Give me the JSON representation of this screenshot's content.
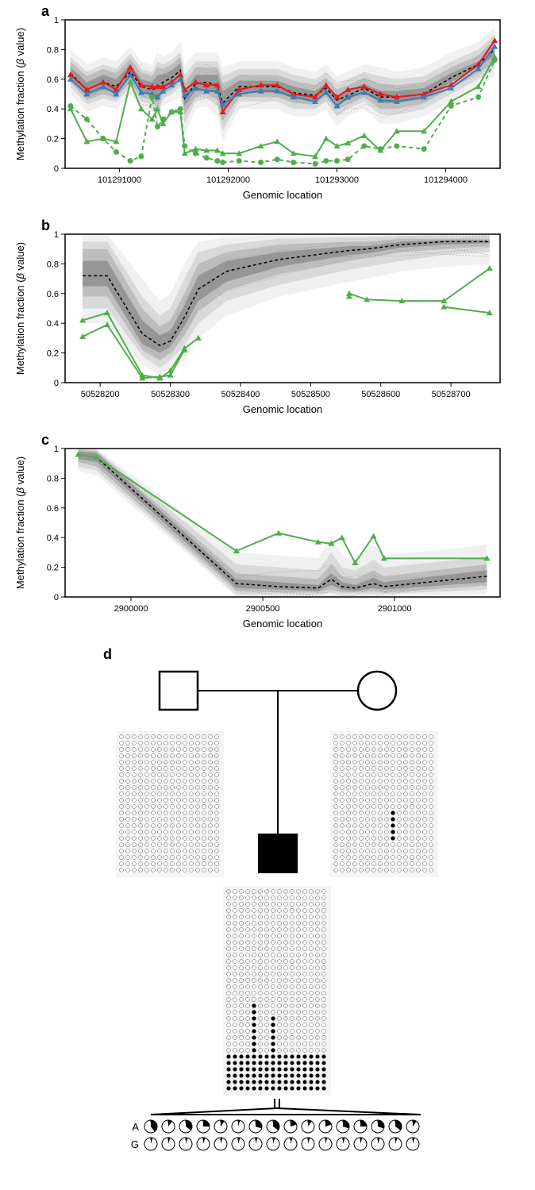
{
  "figure_width": 674,
  "figure_height": 1499,
  "panels": {
    "a": {
      "label": "a",
      "type": "line",
      "ylabel": "Methylation fraction (β value)",
      "xlabel": "Genomic location",
      "ylim": [
        0,
        1
      ],
      "yticks": [
        0,
        0.2,
        0.4,
        0.6,
        0.8,
        1
      ],
      "xlim": [
        101290500,
        101294500
      ],
      "xticks": [
        101291000,
        101292000,
        101293000,
        101294000
      ],
      "background_color": "#ffffff",
      "shade_colors": [
        "#f0f0f0",
        "#d9d9d9",
        "#bdbdbd",
        "#969696"
      ],
      "shade_bands": [
        {
          "low": [
            0.5,
            0.38,
            0.42,
            0.4,
            0.5,
            0.4,
            0.38,
            0.28,
            0.42,
            0.45,
            0.48,
            0.22,
            0.4,
            0.42,
            0.35,
            0.18,
            0.4,
            0.4,
            0.4,
            0.35,
            0.35,
            0.4,
            0.28,
            0.35,
            0.4,
            0.3,
            0.3,
            0.35,
            0.45,
            0.55,
            0.62
          ],
          "high": [
            0.8,
            0.7,
            0.75,
            0.72,
            0.82,
            0.72,
            0.7,
            0.78,
            0.75,
            0.78,
            0.85,
            0.7,
            0.78,
            0.78,
            0.78,
            0.68,
            0.72,
            0.72,
            0.72,
            0.68,
            0.65,
            0.7,
            0.62,
            0.65,
            0.7,
            0.68,
            0.65,
            0.68,
            0.78,
            0.85,
            0.95
          ]
        },
        {
          "low": [
            0.55,
            0.43,
            0.47,
            0.45,
            0.55,
            0.45,
            0.43,
            0.35,
            0.47,
            0.5,
            0.55,
            0.3,
            0.45,
            0.47,
            0.42,
            0.25,
            0.45,
            0.45,
            0.45,
            0.4,
            0.4,
            0.45,
            0.35,
            0.4,
            0.45,
            0.36,
            0.36,
            0.4,
            0.5,
            0.6,
            0.68
          ],
          "high": [
            0.75,
            0.65,
            0.7,
            0.67,
            0.77,
            0.67,
            0.65,
            0.72,
            0.7,
            0.73,
            0.78,
            0.63,
            0.72,
            0.72,
            0.72,
            0.62,
            0.67,
            0.67,
            0.67,
            0.63,
            0.6,
            0.65,
            0.57,
            0.6,
            0.65,
            0.62,
            0.6,
            0.62,
            0.72,
            0.8,
            0.9
          ]
        },
        {
          "low": [
            0.58,
            0.46,
            0.5,
            0.48,
            0.58,
            0.48,
            0.46,
            0.4,
            0.5,
            0.53,
            0.58,
            0.36,
            0.48,
            0.5,
            0.46,
            0.32,
            0.48,
            0.48,
            0.48,
            0.44,
            0.43,
            0.48,
            0.4,
            0.43,
            0.48,
            0.4,
            0.4,
            0.44,
            0.54,
            0.64,
            0.72
          ],
          "high": [
            0.72,
            0.62,
            0.67,
            0.64,
            0.74,
            0.64,
            0.62,
            0.68,
            0.67,
            0.7,
            0.75,
            0.58,
            0.68,
            0.68,
            0.68,
            0.57,
            0.63,
            0.63,
            0.63,
            0.59,
            0.56,
            0.61,
            0.53,
            0.56,
            0.61,
            0.57,
            0.56,
            0.58,
            0.68,
            0.76,
            0.87
          ]
        },
        {
          "low": [
            0.6,
            0.49,
            0.53,
            0.51,
            0.61,
            0.51,
            0.49,
            0.45,
            0.53,
            0.56,
            0.62,
            0.42,
            0.52,
            0.53,
            0.5,
            0.38,
            0.51,
            0.51,
            0.51,
            0.47,
            0.46,
            0.51,
            0.44,
            0.46,
            0.51,
            0.44,
            0.44,
            0.47,
            0.58,
            0.68,
            0.76
          ],
          "high": [
            0.68,
            0.58,
            0.63,
            0.6,
            0.7,
            0.6,
            0.58,
            0.63,
            0.63,
            0.66,
            0.71,
            0.52,
            0.63,
            0.63,
            0.63,
            0.52,
            0.59,
            0.59,
            0.59,
            0.55,
            0.52,
            0.57,
            0.49,
            0.52,
            0.57,
            0.52,
            0.52,
            0.54,
            0.64,
            0.72,
            0.83
          ]
        }
      ],
      "x_positions": [
        101290550,
        101290700,
        101290850,
        101290970,
        101291100,
        101291200,
        101291300,
        101291350,
        101291400,
        101291480,
        101291560,
        101291600,
        101291700,
        101291800,
        101291900,
        101291950,
        101292100,
        101292300,
        101292450,
        101292600,
        101292800,
        101292900,
        101293000,
        101293100,
        101293250,
        101293400,
        101293550,
        101293800,
        101294050,
        101294300,
        101294450
      ],
      "median": [
        0.64,
        0.53,
        0.58,
        0.55,
        0.65,
        0.55,
        0.53,
        0.54,
        0.58,
        0.61,
        0.66,
        0.47,
        0.57,
        0.58,
        0.56,
        0.44,
        0.55,
        0.55,
        0.55,
        0.51,
        0.49,
        0.54,
        0.46,
        0.49,
        0.54,
        0.48,
        0.48,
        0.5,
        0.61,
        0.7,
        0.8
      ],
      "series": [
        {
          "name": "red",
          "color": "#e41a1c",
          "marker": "triangle",
          "dash": false,
          "y": [
            0.63,
            0.53,
            0.58,
            0.53,
            0.68,
            0.56,
            0.55,
            0.55,
            0.55,
            0.58,
            0.63,
            0.53,
            0.58,
            0.56,
            0.56,
            0.38,
            0.53,
            0.56,
            0.56,
            0.5,
            0.48,
            0.56,
            0.48,
            0.53,
            0.55,
            0.5,
            0.48,
            0.5,
            0.56,
            0.7,
            0.86
          ]
        },
        {
          "name": "blue",
          "color": "#377eb8",
          "marker": "triangle",
          "dash": false,
          "y": [
            0.6,
            0.5,
            0.55,
            0.5,
            0.63,
            0.51,
            0.5,
            0.48,
            0.52,
            0.56,
            0.6,
            0.49,
            0.54,
            0.52,
            0.52,
            0.43,
            0.5,
            0.52,
            0.52,
            0.48,
            0.45,
            0.51,
            0.42,
            0.48,
            0.51,
            0.46,
            0.45,
            0.48,
            0.54,
            0.67,
            0.82
          ]
        },
        {
          "name": "green1",
          "color": "#4daf4a",
          "marker": "triangle",
          "dash": false,
          "y": [
            0.4,
            0.18,
            0.2,
            0.18,
            0.58,
            0.4,
            0.33,
            0.4,
            0.3,
            0.38,
            0.38,
            0.1,
            0.13,
            0.12,
            0.12,
            0.1,
            0.1,
            0.15,
            0.18,
            0.1,
            0.08,
            0.2,
            0.15,
            0.17,
            0.22,
            0.12,
            0.25,
            0.25,
            0.45,
            0.55,
            0.75
          ]
        },
        {
          "name": "green2",
          "color": "#4daf4a",
          "marker": "circle",
          "dash": true,
          "y": [
            0.42,
            0.33,
            0.2,
            0.11,
            0.05,
            0.08,
            0.48,
            0.28,
            0.33,
            0.38,
            0.4,
            0.15,
            0.1,
            0.07,
            0.05,
            0.04,
            0.05,
            0.04,
            0.06,
            0.04,
            0.03,
            0.05,
            0.05,
            0.06,
            0.15,
            0.13,
            0.15,
            0.13,
            0.42,
            0.48,
            0.73
          ]
        }
      ]
    },
    "b": {
      "label": "b",
      "type": "line",
      "ylabel": "Methylation fraction (β value)",
      "xlabel": "Genomic location",
      "ylim": [
        0,
        1
      ],
      "yticks": [
        0,
        0.2,
        0.4,
        0.6,
        0.8,
        1
      ],
      "xlim": [
        50528150,
        50528770
      ],
      "xticks": [
        50528200,
        50528300,
        50528400,
        50528500,
        50528600,
        50528700
      ],
      "background_color": "#ffffff",
      "shade_colors": [
        "#f0f0f0",
        "#d9d9d9",
        "#bdbdbd",
        "#969696"
      ],
      "x_positions": [
        50528175,
        50528210,
        50528260,
        50528285,
        50528300,
        50528320,
        50528340,
        50528380,
        50528455,
        50528555,
        50528580,
        50528630,
        50528690,
        50528755
      ],
      "shade_bands": [
        {
          "low": [
            0.4,
            0.4,
            0.12,
            0.05,
            0.1,
            0.15,
            0.3,
            0.45,
            0.58,
            0.68,
            0.7,
            0.75,
            0.78,
            0.8
          ],
          "high": [
            1.0,
            1.0,
            0.7,
            0.55,
            0.6,
            0.8,
            0.95,
            0.98,
            1.0,
            1.0,
            1.0,
            1.0,
            1.0,
            1.0
          ]
        },
        {
          "low": [
            0.5,
            0.5,
            0.18,
            0.1,
            0.15,
            0.25,
            0.4,
            0.55,
            0.66,
            0.76,
            0.78,
            0.82,
            0.86,
            0.88
          ],
          "high": [
            0.95,
            0.95,
            0.58,
            0.45,
            0.5,
            0.7,
            0.88,
            0.93,
            0.97,
            0.98,
            0.98,
            0.99,
            0.99,
            0.99
          ]
        },
        {
          "low": [
            0.58,
            0.58,
            0.22,
            0.15,
            0.2,
            0.32,
            0.48,
            0.62,
            0.73,
            0.82,
            0.84,
            0.88,
            0.9,
            0.92
          ],
          "high": [
            0.9,
            0.9,
            0.5,
            0.38,
            0.42,
            0.6,
            0.8,
            0.88,
            0.93,
            0.95,
            0.95,
            0.97,
            0.97,
            0.97
          ]
        },
        {
          "low": [
            0.65,
            0.65,
            0.26,
            0.2,
            0.24,
            0.38,
            0.55,
            0.68,
            0.78,
            0.86,
            0.87,
            0.91,
            0.93,
            0.94
          ],
          "high": [
            0.82,
            0.82,
            0.42,
            0.32,
            0.35,
            0.52,
            0.72,
            0.82,
            0.88,
            0.92,
            0.92,
            0.95,
            0.96,
            0.96
          ]
        }
      ],
      "median": [
        0.72,
        0.72,
        0.33,
        0.25,
        0.28,
        0.44,
        0.63,
        0.75,
        0.83,
        0.89,
        0.9,
        0.93,
        0.95,
        0.95
      ],
      "series": [
        {
          "name": "green1",
          "color": "#4daf4a",
          "marker": "triangle",
          "dash": false,
          "y": [
            0.42,
            0.47,
            0.05,
            0.03,
            0.08,
            0.23,
            0.3,
            null,
            null,
            0.6,
            0.56,
            0.55,
            0.55,
            0.77
          ]
        },
        {
          "name": "green2",
          "color": "#4daf4a",
          "marker": "triangle",
          "dash": false,
          "y": [
            0.31,
            0.39,
            0.03,
            0.04,
            0.05,
            0.22,
            null,
            null,
            null,
            0.58,
            null,
            null,
            0.51,
            0.47
          ]
        }
      ]
    },
    "c": {
      "label": "c",
      "type": "line",
      "ylabel": "Methylation fraction (β value)",
      "xlabel": "Genomic location",
      "ylim": [
        0,
        1
      ],
      "yticks": [
        0,
        0.2,
        0.4,
        0.6,
        0.8,
        1
      ],
      "xlim": [
        2899750,
        2901400
      ],
      "xticks": [
        2900000,
        2900500,
        2901000
      ],
      "background_color": "#ffffff",
      "shade_colors": [
        "#f0f0f0",
        "#d9d9d9",
        "#bdbdbd",
        "#969696"
      ],
      "x_positions": [
        2899800,
        2899870,
        2900400,
        2900560,
        2900710,
        2900760,
        2900800,
        2900850,
        2900920,
        2900960,
        2901350
      ],
      "shade_bands": [
        {
          "low": [
            0.85,
            0.82,
            0.0,
            0.0,
            0.0,
            0.0,
            0.0,
            0.0,
            0.0,
            0.0,
            0.02
          ],
          "high": [
            1.0,
            1.0,
            0.3,
            0.28,
            0.26,
            0.4,
            0.28,
            0.25,
            0.35,
            0.28,
            0.35
          ]
        },
        {
          "low": [
            0.88,
            0.85,
            0.02,
            0.02,
            0.02,
            0.03,
            0.02,
            0.02,
            0.02,
            0.02,
            0.05
          ],
          "high": [
            1.0,
            0.99,
            0.22,
            0.2,
            0.18,
            0.3,
            0.2,
            0.18,
            0.25,
            0.2,
            0.27
          ]
        },
        {
          "low": [
            0.91,
            0.88,
            0.04,
            0.03,
            0.03,
            0.05,
            0.03,
            0.03,
            0.04,
            0.03,
            0.08
          ],
          "high": [
            0.99,
            0.98,
            0.16,
            0.14,
            0.12,
            0.22,
            0.14,
            0.12,
            0.18,
            0.14,
            0.22
          ]
        },
        {
          "low": [
            0.93,
            0.91,
            0.06,
            0.05,
            0.04,
            0.08,
            0.05,
            0.04,
            0.06,
            0.05,
            0.1
          ],
          "high": [
            0.98,
            0.97,
            0.12,
            0.1,
            0.08,
            0.16,
            0.1,
            0.08,
            0.13,
            0.1,
            0.18
          ]
        }
      ],
      "median": [
        0.96,
        0.94,
        0.09,
        0.07,
        0.06,
        0.12,
        0.07,
        0.06,
        0.09,
        0.07,
        0.14
      ],
      "series": [
        {
          "name": "green",
          "color": "#4daf4a",
          "marker": "triangle",
          "dash": false,
          "y": [
            0.96,
            0.94,
            0.31,
            0.43,
            0.37,
            0.36,
            0.4,
            0.23,
            0.41,
            0.26,
            0.26
          ]
        }
      ]
    },
    "d": {
      "label": "d",
      "type": "pedigree",
      "father_shape": "square_open",
      "mother_shape": "circle_open",
      "child_shape": "square_filled",
      "read_block_cols": 16,
      "father_rows": 22,
      "mother_rows": 22,
      "child_rows": 32,
      "child_filled_rows": 6,
      "allele_labels": [
        "A",
        "G"
      ],
      "pie_row_A_fractions": [
        0.4,
        0.1,
        0.35,
        0.25,
        0.1,
        0.05,
        0.3,
        0.35,
        0.2,
        0.1,
        0.2,
        0.3,
        0.25,
        0.3,
        0.35,
        0.1
      ],
      "pie_row_G_fractions": [
        0.05,
        0.05,
        0.05,
        0.05,
        0.05,
        0.05,
        0.05,
        0.05,
        0.05,
        0.05,
        0.05,
        0.05,
        0.05,
        0.05,
        0.05,
        0.05
      ],
      "pie_fill_color": "#000000",
      "pie_empty_color": "#ffffff",
      "pie_stroke": "#000000"
    }
  }
}
